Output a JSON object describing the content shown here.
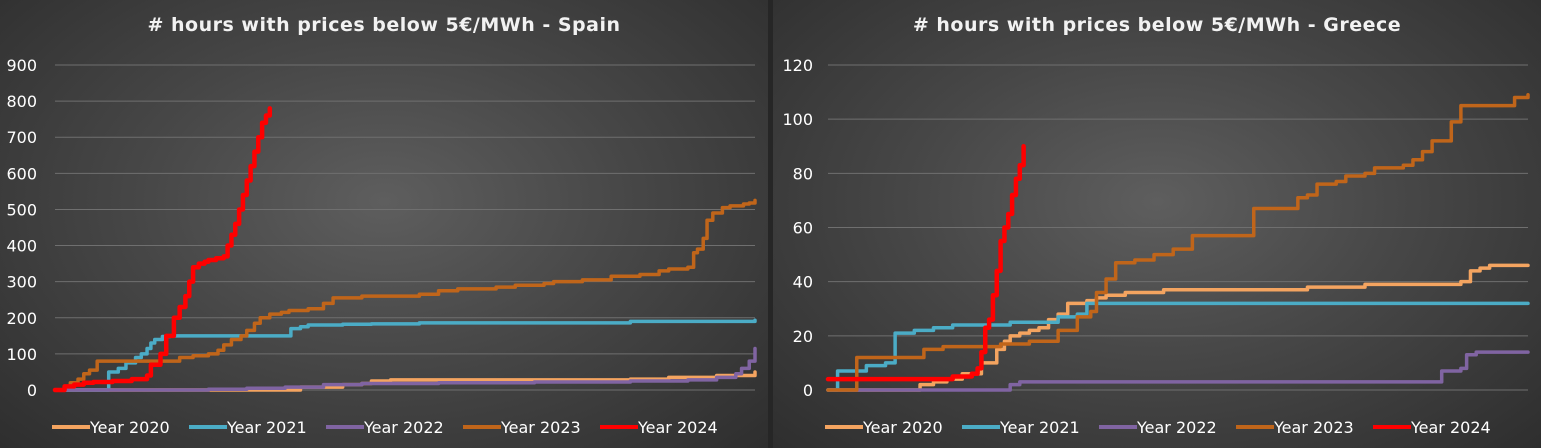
{
  "chart_data": [
    {
      "type": "line",
      "title": "# hours with prices below 5€/MWh - Spain",
      "xlabel": "",
      "ylabel": "",
      "ylim": [
        0,
        900
      ],
      "yticks": [
        0,
        100,
        200,
        300,
        400,
        500,
        600,
        700,
        800,
        900
      ],
      "x_domain": [
        0,
        365
      ],
      "grid": true,
      "legend_position": "bottom",
      "series": [
        {
          "name": "Year 2020",
          "color": "#F4A460",
          "points": [
            [
              0,
              0
            ],
            [
              120,
              0
            ],
            [
              128,
              8
            ],
            [
              150,
              15
            ],
            [
              160,
              18
            ],
            [
              165,
              25
            ],
            [
              175,
              28
            ],
            [
              200,
              28
            ],
            [
              250,
              28
            ],
            [
              300,
              30
            ],
            [
              320,
              35
            ],
            [
              345,
              40
            ],
            [
              365,
              50
            ]
          ]
        },
        {
          "name": "Year 2021",
          "color": "#4BACC6",
          "points": [
            [
              0,
              0
            ],
            [
              22,
              0
            ],
            [
              28,
              50
            ],
            [
              33,
              60
            ],
            [
              37,
              75
            ],
            [
              42,
              90
            ],
            [
              45,
              100
            ],
            [
              48,
              115
            ],
            [
              50,
              130
            ],
            [
              52,
              140
            ],
            [
              56,
              148
            ],
            [
              60,
              150
            ],
            [
              100,
              150
            ],
            [
              118,
              150
            ],
            [
              123,
              170
            ],
            [
              128,
              175
            ],
            [
              132,
              180
            ],
            [
              150,
              182
            ],
            [
              165,
              183
            ],
            [
              190,
              186
            ],
            [
              250,
              186
            ],
            [
              300,
              190
            ],
            [
              340,
              190
            ],
            [
              355,
              190
            ],
            [
              365,
              193
            ]
          ]
        },
        {
          "name": "Year 2022",
          "color": "#8064A2",
          "points": [
            [
              0,
              0
            ],
            [
              80,
              2
            ],
            [
              100,
              5
            ],
            [
              120,
              8
            ],
            [
              140,
              15
            ],
            [
              160,
              18
            ],
            [
              200,
              20
            ],
            [
              250,
              22
            ],
            [
              300,
              25
            ],
            [
              330,
              28
            ],
            [
              345,
              35
            ],
            [
              355,
              45
            ],
            [
              358,
              60
            ],
            [
              362,
              80
            ],
            [
              365,
              115
            ]
          ]
        },
        {
          "name": "Year 2023",
          "color": "#C0651A",
          "points": [
            [
              0,
              0
            ],
            [
              5,
              10
            ],
            [
              8,
              20
            ],
            [
              12,
              30
            ],
            [
              15,
              45
            ],
            [
              18,
              55
            ],
            [
              22,
              80
            ],
            [
              45,
              80
            ],
            [
              60,
              80
            ],
            [
              65,
              90
            ],
            [
              72,
              95
            ],
            [
              80,
              100
            ],
            [
              85,
              110
            ],
            [
              88,
              125
            ],
            [
              92,
              140
            ],
            [
              97,
              150
            ],
            [
              100,
              165
            ],
            [
              104,
              185
            ],
            [
              107,
              200
            ],
            [
              112,
              210
            ],
            [
              118,
              215
            ],
            [
              122,
              220
            ],
            [
              132,
              225
            ],
            [
              140,
              240
            ],
            [
              145,
              255
            ],
            [
              160,
              260
            ],
            [
              175,
              260
            ],
            [
              190,
              265
            ],
            [
              200,
              275
            ],
            [
              210,
              280
            ],
            [
              230,
              285
            ],
            [
              240,
              290
            ],
            [
              255,
              295
            ],
            [
              260,
              300
            ],
            [
              275,
              305
            ],
            [
              290,
              315
            ],
            [
              305,
              320
            ],
            [
              315,
              330
            ],
            [
              320,
              335
            ],
            [
              330,
              340
            ],
            [
              333,
              380
            ],
            [
              335,
              390
            ],
            [
              338,
              420
            ],
            [
              340,
              470
            ],
            [
              343,
              490
            ],
            [
              348,
              505
            ],
            [
              352,
              510
            ],
            [
              356,
              510
            ],
            [
              359,
              515
            ],
            [
              362,
              518
            ],
            [
              365,
              525
            ]
          ]
        },
        {
          "name": "Year 2024",
          "color": "#FF0000",
          "points": [
            [
              0,
              0
            ],
            [
              5,
              10
            ],
            [
              10,
              15
            ],
            [
              15,
              20
            ],
            [
              20,
              22
            ],
            [
              30,
              25
            ],
            [
              40,
              30
            ],
            [
              48,
              40
            ],
            [
              50,
              70
            ],
            [
              55,
              100
            ],
            [
              58,
              150
            ],
            [
              62,
              200
            ],
            [
              65,
              230
            ],
            [
              68,
              260
            ],
            [
              70,
              300
            ],
            [
              72,
              340
            ],
            [
              75,
              350
            ],
            [
              78,
              355
            ],
            [
              80,
              360
            ],
            [
              84,
              365
            ],
            [
              88,
              370
            ],
            [
              90,
              400
            ],
            [
              92,
              430
            ],
            [
              94,
              460
            ],
            [
              96,
              500
            ],
            [
              98,
              540
            ],
            [
              100,
              580
            ],
            [
              102,
              620
            ],
            [
              104,
              660
            ],
            [
              106,
              700
            ],
            [
              108,
              740
            ],
            [
              110,
              760
            ],
            [
              112,
              780
            ]
          ]
        }
      ]
    },
    {
      "type": "line",
      "title": "# hours with prices below 5€/MWh - Greece",
      "xlabel": "",
      "ylabel": "",
      "ylim": [
        0,
        120
      ],
      "yticks": [
        0,
        20,
        40,
        60,
        80,
        100,
        120
      ],
      "x_domain": [
        0,
        365
      ],
      "grid": true,
      "legend_position": "bottom",
      "series": [
        {
          "name": "Year 2020",
          "color": "#F4A460",
          "points": [
            [
              0,
              0
            ],
            [
              40,
              0
            ],
            [
              48,
              2
            ],
            [
              55,
              3
            ],
            [
              62,
              4
            ],
            [
              70,
              6
            ],
            [
              80,
              10
            ],
            [
              88,
              15
            ],
            [
              92,
              18
            ],
            [
              95,
              20
            ],
            [
              100,
              21
            ],
            [
              105,
              22
            ],
            [
              110,
              23
            ],
            [
              115,
              26
            ],
            [
              120,
              28
            ],
            [
              125,
              32
            ],
            [
              135,
              33
            ],
            [
              140,
              34
            ],
            [
              145,
              35
            ],
            [
              155,
              36
            ],
            [
              175,
              37
            ],
            [
              250,
              38
            ],
            [
              280,
              39
            ],
            [
              300,
              39
            ],
            [
              330,
              40
            ],
            [
              335,
              44
            ],
            [
              340,
              45
            ],
            [
              345,
              46
            ],
            [
              365,
              46
            ]
          ]
        },
        {
          "name": "Year 2021",
          "color": "#4BACC6",
          "points": [
            [
              0,
              0
            ],
            [
              5,
              7
            ],
            [
              15,
              7
            ],
            [
              20,
              9
            ],
            [
              30,
              10
            ],
            [
              35,
              21
            ],
            [
              45,
              22
            ],
            [
              55,
              23
            ],
            [
              65,
              24
            ],
            [
              95,
              25
            ],
            [
              120,
              27
            ],
            [
              130,
              28
            ],
            [
              135,
              32
            ],
            [
              150,
              32
            ],
            [
              300,
              32
            ],
            [
              365,
              32
            ]
          ]
        },
        {
          "name": "Year 2022",
          "color": "#8064A2",
          "points": [
            [
              0,
              0
            ],
            [
              30,
              0
            ],
            [
              60,
              0
            ],
            [
              95,
              2
            ],
            [
              100,
              3
            ],
            [
              120,
              3
            ],
            [
              200,
              3
            ],
            [
              250,
              3
            ],
            [
              300,
              3
            ],
            [
              318,
              3
            ],
            [
              320,
              7
            ],
            [
              330,
              8
            ],
            [
              333,
              13
            ],
            [
              338,
              14
            ],
            [
              365,
              14
            ]
          ]
        },
        {
          "name": "Year 2023",
          "color": "#C0651A",
          "points": [
            [
              0,
              0
            ],
            [
              10,
              0
            ],
            [
              15,
              12
            ],
            [
              40,
              12
            ],
            [
              50,
              15
            ],
            [
              60,
              16
            ],
            [
              90,
              17
            ],
            [
              105,
              18
            ],
            [
              120,
              22
            ],
            [
              130,
              27
            ],
            [
              137,
              29
            ],
            [
              140,
              36
            ],
            [
              145,
              41
            ],
            [
              150,
              47
            ],
            [
              160,
              48
            ],
            [
              170,
              50
            ],
            [
              180,
              52
            ],
            [
              190,
              57
            ],
            [
              200,
              57
            ],
            [
              210,
              57
            ],
            [
              218,
              57
            ],
            [
              222,
              67
            ],
            [
              240,
              67
            ],
            [
              245,
              71
            ],
            [
              250,
              72
            ],
            [
              255,
              76
            ],
            [
              265,
              77
            ],
            [
              270,
              79
            ],
            [
              280,
              80
            ],
            [
              285,
              82
            ],
            [
              300,
              83
            ],
            [
              305,
              85
            ],
            [
              310,
              88
            ],
            [
              315,
              92
            ],
            [
              320,
              92
            ],
            [
              325,
              99
            ],
            [
              330,
              105
            ],
            [
              355,
              105
            ],
            [
              358,
              108
            ],
            [
              365,
              109
            ]
          ]
        },
        {
          "name": "Year 2024",
          "color": "#FF0000",
          "points": [
            [
              0,
              4
            ],
            [
              60,
              4
            ],
            [
              65,
              5
            ],
            [
              75,
              6
            ],
            [
              78,
              8
            ],
            [
              80,
              14
            ],
            [
              82,
              23
            ],
            [
              84,
              26
            ],
            [
              86,
              35
            ],
            [
              88,
              44
            ],
            [
              90,
              55
            ],
            [
              92,
              60
            ],
            [
              94,
              65
            ],
            [
              96,
              72
            ],
            [
              98,
              78
            ],
            [
              100,
              83
            ],
            [
              102,
              90
            ]
          ]
        }
      ]
    }
  ]
}
